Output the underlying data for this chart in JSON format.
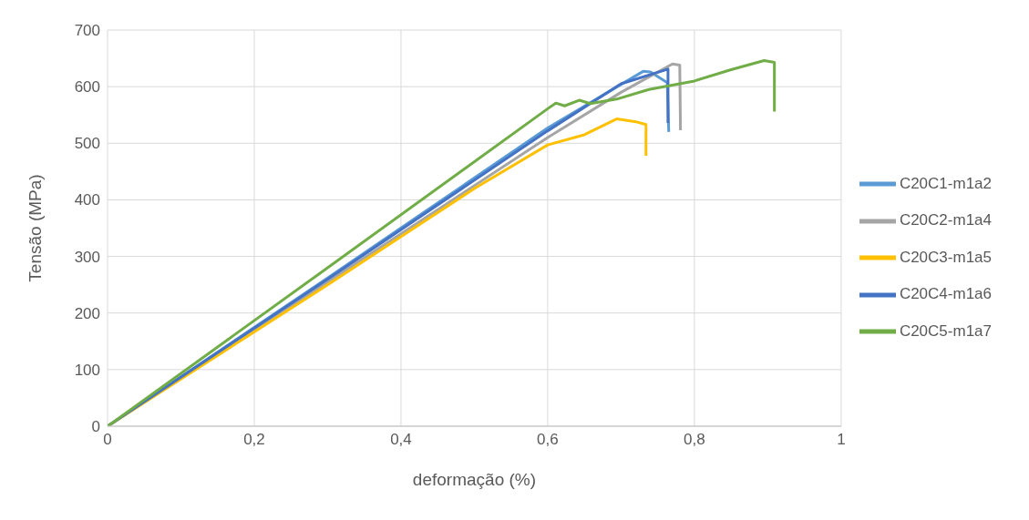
{
  "chart_data": {
    "type": "line",
    "xlabel": "deformação (%)",
    "ylabel": "Tensão (MPa)",
    "xlim": [
      0,
      1
    ],
    "xticks": [
      0,
      {
        "value": 0.2,
        "label": "0,2"
      },
      {
        "value": 0.4,
        "label": "0,4"
      },
      {
        "value": 0.6,
        "label": "0,6"
      },
      {
        "value": 0.8,
        "label": "0,8"
      },
      1
    ],
    "ylim": [
      0,
      700
    ],
    "yticks": [
      0,
      100,
      200,
      300,
      400,
      500,
      600,
      700
    ],
    "grid": true,
    "legend": "right",
    "marker": "none",
    "line_style": "solid",
    "series": [
      {
        "name": "C20C1-m1a2",
        "color": "#5b9bd5",
        "x": [
          0,
          0.3,
          0.6,
          0.73,
          0.74,
          0.763,
          0.765
        ],
        "values": [
          0,
          262,
          527,
          627,
          626,
          607,
          520
        ]
      },
      {
        "name": "C20C2-m1a4",
        "color": "#a5a5a5",
        "x": [
          0,
          0.3,
          0.6,
          0.7,
          0.77,
          0.78,
          0.781
        ],
        "values": [
          0,
          255,
          510,
          590,
          640,
          638,
          523
        ]
      },
      {
        "name": "C20C3-m1a5",
        "color": "#ffc000",
        "x": [
          0,
          0.3,
          0.5,
          0.6,
          0.65,
          0.694,
          0.72,
          0.734,
          0.734
        ],
        "values": [
          0,
          250,
          420,
          497,
          515,
          543,
          538,
          533,
          478
        ]
      },
      {
        "name": "C20C4-m1a6",
        "color": "#4472c4",
        "x": [
          0,
          0.3,
          0.6,
          0.7,
          0.764,
          0.764
        ],
        "values": [
          0,
          260,
          522,
          605,
          631,
          536
        ]
      },
      {
        "name": "C20C5-m1a7",
        "color": "#70ad47",
        "x": [
          0,
          0.3,
          0.6,
          0.611,
          0.623,
          0.643,
          0.658,
          0.694,
          0.738,
          0.8,
          0.85,
          0.895,
          0.909,
          0.909
        ],
        "values": [
          0,
          280,
          561,
          571,
          566,
          576,
          570,
          578,
          595,
          610,
          630,
          646,
          643,
          556
        ]
      }
    ]
  }
}
